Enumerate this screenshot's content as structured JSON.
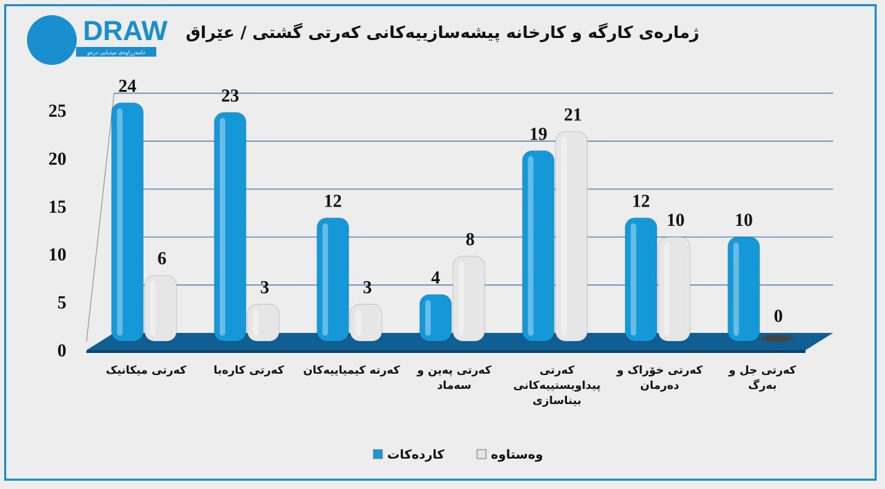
{
  "logo": {
    "text": "DRAW",
    "subtitle": "دامەزراوەی میدیایی درەو"
  },
  "chart_data": {
    "type": "bar",
    "title": "ژمارەی کارگە و کارخانە پیشەسازییەکانی کەرتی گشتی / عێراق",
    "categories": [
      "کەرتی میکانیک",
      "کەرتی کارەبا",
      "کەرتە کیمیاییەکان",
      "کەرتی پەین و سەماد",
      "کەرتی پیداویستییەکانی بیناسازی",
      "کەرتی خۆراک و دەرمان",
      "کەرتی جل و بەرگ"
    ],
    "series": [
      {
        "name": "کاردەکات",
        "color": "#1598d8",
        "values": [
          24,
          23,
          12,
          4,
          19,
          12,
          10
        ]
      },
      {
        "name": "وەستاوە",
        "color": "#e6e6e6",
        "values": [
          6,
          3,
          3,
          8,
          21,
          10,
          0
        ]
      }
    ],
    "ylim": [
      0,
      25
    ],
    "yticks": [
      0,
      5,
      10,
      15,
      20,
      25
    ],
    "grid": true
  }
}
